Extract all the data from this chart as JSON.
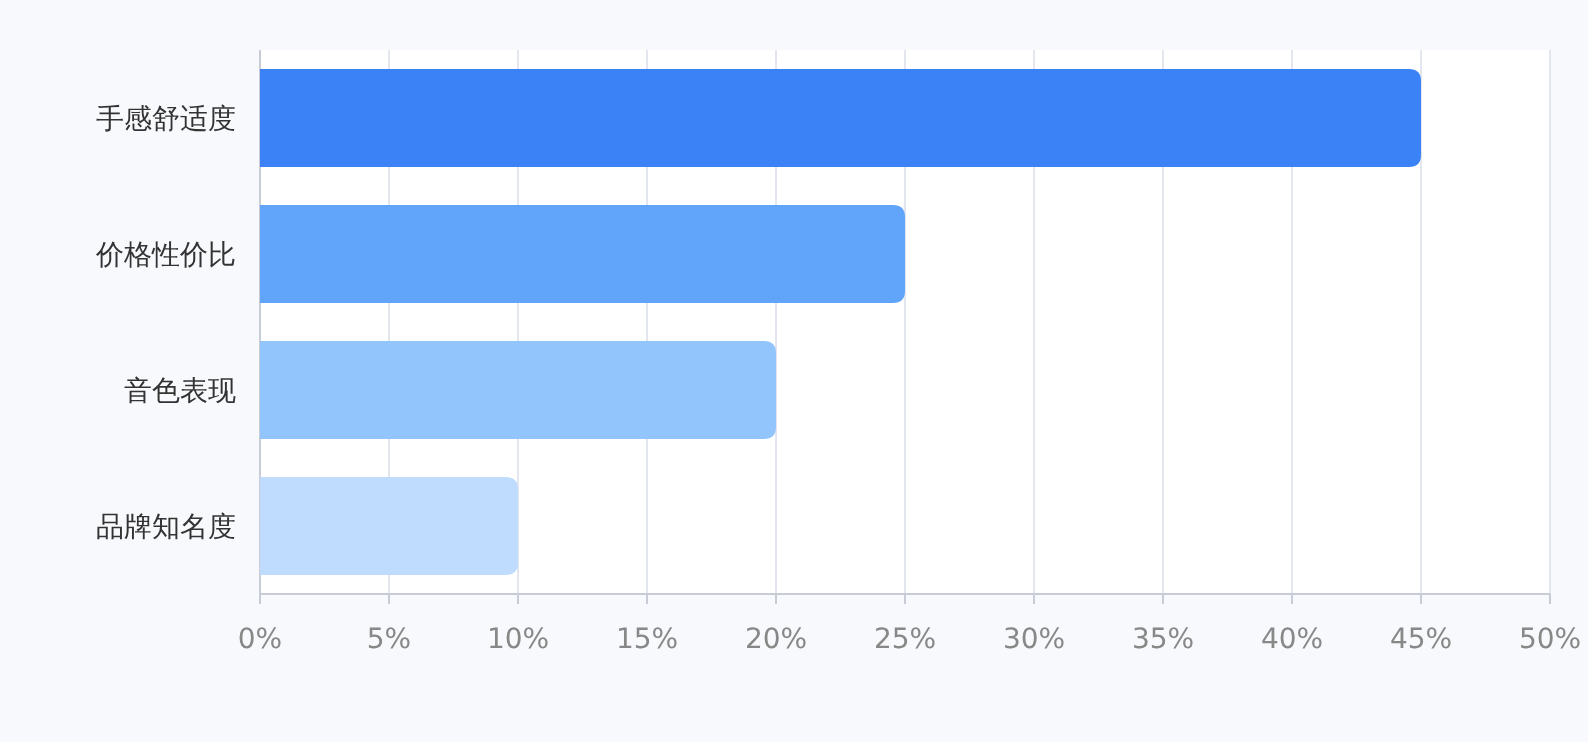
{
  "chart_data": {
    "type": "bar",
    "orientation": "horizontal",
    "categories": [
      "手感舒适度",
      "价格性价比",
      "音色表现",
      "品牌知名度"
    ],
    "values": [
      45,
      25,
      20,
      10
    ],
    "colors": [
      "#3b82f6",
      "#60a5fa",
      "#93c5fd",
      "#bfdbfe"
    ],
    "xlim": [
      0,
      50
    ],
    "xticks": [
      {
        "value": 0,
        "label": "0%"
      },
      {
        "value": 5,
        "label": "5%"
      },
      {
        "value": 10,
        "label": "10%"
      },
      {
        "value": 15,
        "label": "15%"
      },
      {
        "value": 20,
        "label": "20%"
      },
      {
        "value": 25,
        "label": "25%"
      },
      {
        "value": 30,
        "label": "30%"
      },
      {
        "value": 35,
        "label": "35%"
      },
      {
        "value": 40,
        "label": "40%"
      },
      {
        "value": 45,
        "label": "45%"
      },
      {
        "value": 50,
        "label": "50%"
      }
    ],
    "grid": "x"
  }
}
